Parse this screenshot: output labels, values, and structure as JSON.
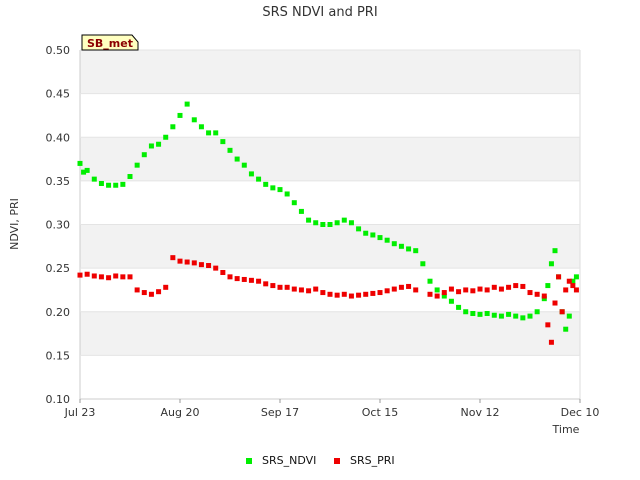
{
  "chart_data": {
    "type": "scatter",
    "title": "SRS NDVI and PRI",
    "xlabel": "Time",
    "ylabel": "NDVI, PRI",
    "badge": "SB_met",
    "x_ticks": [
      "Jul 23",
      "Aug 20",
      "Sep 17",
      "Oct 15",
      "Nov 12",
      "Dec 10"
    ],
    "x_tick_days": [
      0,
      28,
      56,
      84,
      112,
      140
    ],
    "y_ticks": [
      0.1,
      0.15,
      0.2,
      0.25,
      0.3,
      0.35,
      0.4,
      0.45,
      0.5
    ],
    "xlim": [
      "Jul 23",
      "Dec 10"
    ],
    "ylim": [
      0.1,
      0.5
    ],
    "grid": "horizontal-bands",
    "legend_position": "bottom",
    "series": [
      {
        "name": "SRS_NDVI",
        "color": "#00ee00",
        "points": [
          [
            "Jul 23",
            0.37
          ],
          [
            "Jul 24",
            0.36
          ],
          [
            "Jul 25",
            0.362
          ],
          [
            "Jul 27",
            0.352
          ],
          [
            "Jul 29",
            0.347
          ],
          [
            "Jul 31",
            0.345
          ],
          [
            "Aug 2",
            0.345
          ],
          [
            "Aug 4",
            0.346
          ],
          [
            "Aug 6",
            0.355
          ],
          [
            "Aug 8",
            0.368
          ],
          [
            "Aug 10",
            0.38
          ],
          [
            "Aug 12",
            0.39
          ],
          [
            "Aug 14",
            0.392
          ],
          [
            "Aug 16",
            0.4
          ],
          [
            "Aug 18",
            0.412
          ],
          [
            "Aug 20",
            0.425
          ],
          [
            "Aug 22",
            0.438
          ],
          [
            "Aug 24",
            0.42
          ],
          [
            "Aug 26",
            0.412
          ],
          [
            "Aug 28",
            0.405
          ],
          [
            "Aug 30",
            0.405
          ],
          [
            "Sep 1",
            0.395
          ],
          [
            "Sep 3",
            0.385
          ],
          [
            "Sep 5",
            0.375
          ],
          [
            "Sep 7",
            0.368
          ],
          [
            "Sep 9",
            0.358
          ],
          [
            "Sep 11",
            0.352
          ],
          [
            "Sep 13",
            0.346
          ],
          [
            "Sep 15",
            0.342
          ],
          [
            "Sep 17",
            0.34
          ],
          [
            "Sep 19",
            0.335
          ],
          [
            "Sep 21",
            0.325
          ],
          [
            "Sep 23",
            0.315
          ],
          [
            "Sep 25",
            0.305
          ],
          [
            "Sep 27",
            0.302
          ],
          [
            "Sep 29",
            0.3
          ],
          [
            "Oct 1",
            0.3
          ],
          [
            "Oct 3",
            0.302
          ],
          [
            "Oct 5",
            0.305
          ],
          [
            "Oct 7",
            0.302
          ],
          [
            "Oct 9",
            0.295
          ],
          [
            "Oct 11",
            0.29
          ],
          [
            "Oct 13",
            0.288
          ],
          [
            "Oct 15",
            0.285
          ],
          [
            "Oct 17",
            0.282
          ],
          [
            "Oct 19",
            0.278
          ],
          [
            "Oct 21",
            0.275
          ],
          [
            "Oct 23",
            0.272
          ],
          [
            "Oct 25",
            0.27
          ],
          [
            "Oct 27",
            0.255
          ],
          [
            "Oct 29",
            0.235
          ],
          [
            "Oct 31",
            0.225
          ],
          [
            "Nov 2",
            0.218
          ],
          [
            "Nov 4",
            0.212
          ],
          [
            "Nov 6",
            0.205
          ],
          [
            "Nov 8",
            0.2
          ],
          [
            "Nov 10",
            0.198
          ],
          [
            "Nov 12",
            0.197
          ],
          [
            "Nov 14",
            0.198
          ],
          [
            "Nov 16",
            0.196
          ],
          [
            "Nov 18",
            0.195
          ],
          [
            "Nov 20",
            0.197
          ],
          [
            "Nov 22",
            0.195
          ],
          [
            "Nov 24",
            0.193
          ],
          [
            "Nov 26",
            0.195
          ],
          [
            "Nov 28",
            0.2
          ],
          [
            "Nov 30",
            0.215
          ],
          [
            "Dec 1",
            0.23
          ],
          [
            "Dec 2",
            0.255
          ],
          [
            "Dec 3",
            0.27
          ],
          [
            "Dec 4",
            0.24
          ],
          [
            "Dec 5",
            0.2
          ],
          [
            "Dec 6",
            0.18
          ],
          [
            "Dec 7",
            0.195
          ],
          [
            "Dec 8",
            0.235
          ],
          [
            "Dec 9",
            0.24
          ]
        ]
      },
      {
        "name": "SRS_PRI",
        "color": "#ee0000",
        "points": [
          [
            "Jul 23",
            0.242
          ],
          [
            "Jul 25",
            0.243
          ],
          [
            "Jul 27",
            0.241
          ],
          [
            "Jul 29",
            0.24
          ],
          [
            "Jul 31",
            0.239
          ],
          [
            "Aug 2",
            0.241
          ],
          [
            "Aug 4",
            0.24
          ],
          [
            "Aug 6",
            0.24
          ],
          [
            "Aug 8",
            0.225
          ],
          [
            "Aug 10",
            0.222
          ],
          [
            "Aug 12",
            0.22
          ],
          [
            "Aug 14",
            0.223
          ],
          [
            "Aug 16",
            0.228
          ],
          [
            "Aug 18",
            0.262
          ],
          [
            "Aug 20",
            0.258
          ],
          [
            "Aug 22",
            0.257
          ],
          [
            "Aug 24",
            0.256
          ],
          [
            "Aug 26",
            0.254
          ],
          [
            "Aug 28",
            0.253
          ],
          [
            "Aug 30",
            0.25
          ],
          [
            "Sep 1",
            0.245
          ],
          [
            "Sep 3",
            0.24
          ],
          [
            "Sep 5",
            0.238
          ],
          [
            "Sep 7",
            0.237
          ],
          [
            "Sep 9",
            0.236
          ],
          [
            "Sep 11",
            0.235
          ],
          [
            "Sep 13",
            0.232
          ],
          [
            "Sep 15",
            0.23
          ],
          [
            "Sep 17",
            0.228
          ],
          [
            "Sep 19",
            0.228
          ],
          [
            "Sep 21",
            0.226
          ],
          [
            "Sep 23",
            0.225
          ],
          [
            "Sep 25",
            0.224
          ],
          [
            "Sep 27",
            0.226
          ],
          [
            "Sep 29",
            0.222
          ],
          [
            "Oct 1",
            0.22
          ],
          [
            "Oct 3",
            0.219
          ],
          [
            "Oct 5",
            0.22
          ],
          [
            "Oct 7",
            0.218
          ],
          [
            "Oct 9",
            0.219
          ],
          [
            "Oct 11",
            0.22
          ],
          [
            "Oct 13",
            0.221
          ],
          [
            "Oct 15",
            0.222
          ],
          [
            "Oct 17",
            0.224
          ],
          [
            "Oct 19",
            0.226
          ],
          [
            "Oct 21",
            0.228
          ],
          [
            "Oct 23",
            0.229
          ],
          [
            "Oct 25",
            0.225
          ],
          [
            "Oct 29",
            0.22
          ],
          [
            "Oct 31",
            0.218
          ],
          [
            "Nov 2",
            0.222
          ],
          [
            "Nov 4",
            0.226
          ],
          [
            "Nov 6",
            0.223
          ],
          [
            "Nov 8",
            0.225
          ],
          [
            "Nov 10",
            0.224
          ],
          [
            "Nov 12",
            0.226
          ],
          [
            "Nov 14",
            0.225
          ],
          [
            "Nov 16",
            0.228
          ],
          [
            "Nov 18",
            0.226
          ],
          [
            "Nov 20",
            0.228
          ],
          [
            "Nov 22",
            0.23
          ],
          [
            "Nov 24",
            0.229
          ],
          [
            "Nov 26",
            0.222
          ],
          [
            "Nov 28",
            0.22
          ],
          [
            "Nov 30",
            0.218
          ],
          [
            "Dec 1",
            0.185
          ],
          [
            "Dec 2",
            0.165
          ],
          [
            "Dec 3",
            0.21
          ],
          [
            "Dec 4",
            0.24
          ],
          [
            "Dec 5",
            0.2
          ],
          [
            "Dec 6",
            0.225
          ],
          [
            "Dec 7",
            0.235
          ],
          [
            "Dec 8",
            0.23
          ],
          [
            "Dec 9",
            0.225
          ]
        ]
      }
    ]
  }
}
